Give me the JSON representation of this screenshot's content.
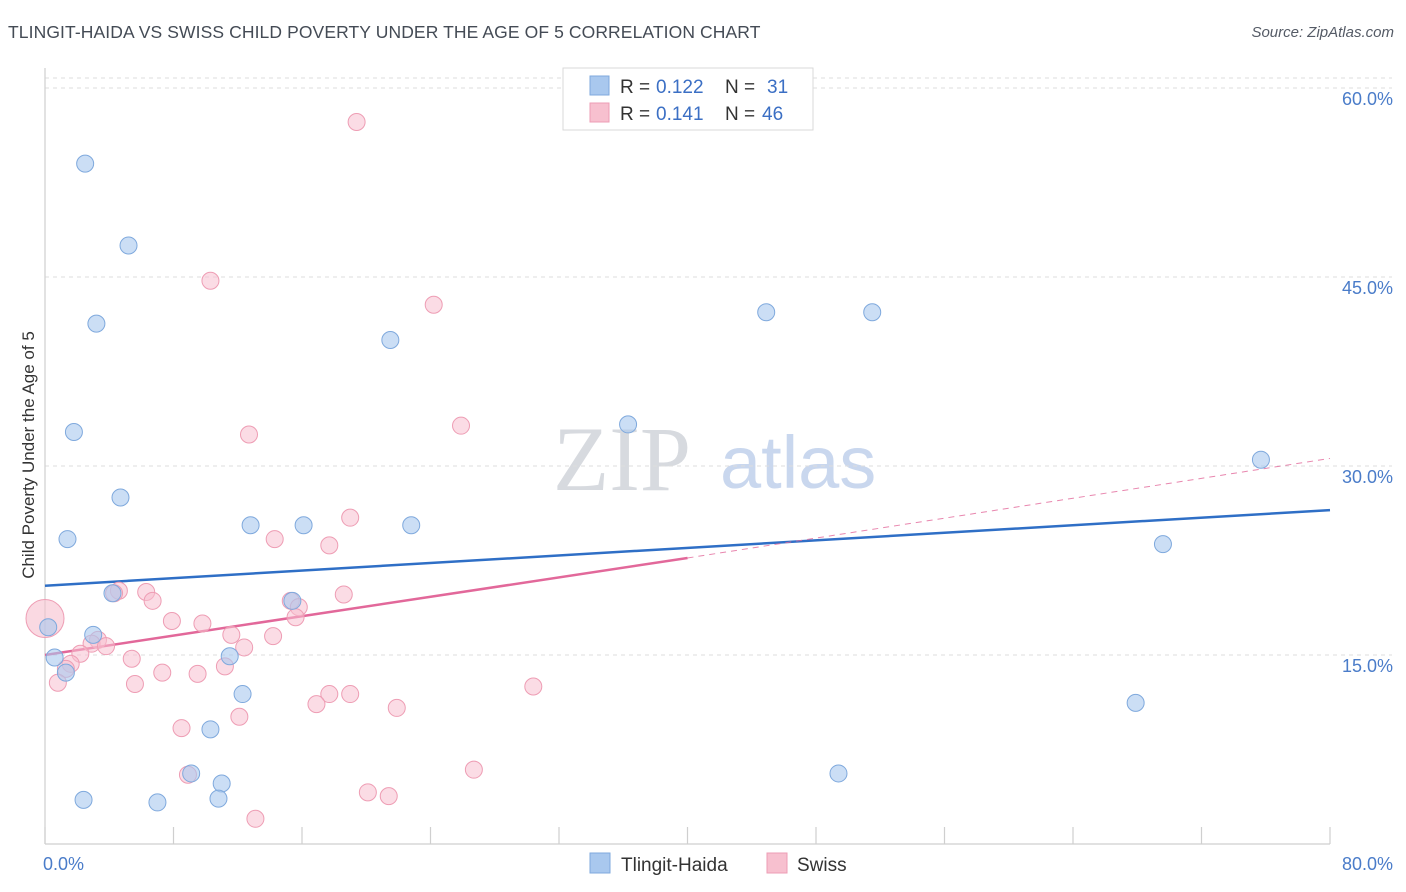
{
  "header": {
    "title": "TLINGIT-HAIDA VS SWISS CHILD POVERTY UNDER THE AGE OF 5 CORRELATION CHART",
    "source": "Source: ZipAtlas.com"
  },
  "watermark": {
    "zip": "ZIP",
    "atlas": "atlas"
  },
  "colors": {
    "blue_fill": "#a9c8ee",
    "blue_stroke": "#7fa9dd",
    "blue_line": "#2f6fc6",
    "pink_fill": "#f7c0cf",
    "pink_stroke": "#ee9db4",
    "pink_line": "#e2689a",
    "grid": "#dddddd",
    "tick_label": "#4a7cc9"
  },
  "legend": {
    "rows": [
      {
        "r_label": "R = ",
        "r_value": "0.122",
        "n_label": "N = ",
        "n_value": "31"
      },
      {
        "r_label": "R = ",
        "r_value": "0.141",
        "n_label": "N = ",
        "n_value": "46"
      }
    ]
  },
  "chart_data": {
    "type": "scatter",
    "title": "TLINGIT-HAIDA VS SWISS CHILD POVERTY UNDER THE AGE OF 5 CORRELATION CHART",
    "xlabel": "",
    "ylabel": "Child Poverty Under the Age of 5",
    "xlim": [
      0,
      80
    ],
    "ylim": [
      0,
      60
    ],
    "x_tick_labels": [
      "0.0%",
      "80.0%"
    ],
    "y_ticks": [
      15,
      30,
      45,
      60
    ],
    "y_tick_labels": [
      "15.0%",
      "30.0%",
      "45.0%",
      "60.0%"
    ],
    "grid": true,
    "legend_position": "top-center",
    "series": [
      {
        "name": "Tlingit-Haida",
        "color": "blue",
        "r": 0.122,
        "n": 31,
        "trend": {
          "x": [
            0,
            80
          ],
          "y": [
            20.5,
            26.5
          ]
        },
        "points": [
          [
            2.5,
            54.0
          ],
          [
            5.2,
            47.5
          ],
          [
            3.2,
            41.3
          ],
          [
            21.5,
            40.0
          ],
          [
            1.8,
            32.7
          ],
          [
            4.7,
            27.5
          ],
          [
            1.4,
            24.2
          ],
          [
            12.8,
            25.3
          ],
          [
            16.1,
            25.3
          ],
          [
            22.8,
            25.3
          ],
          [
            36.3,
            33.3
          ],
          [
            44.9,
            42.2
          ],
          [
            51.5,
            42.2
          ],
          [
            75.7,
            30.5
          ],
          [
            69.6,
            23.8
          ],
          [
            4.2,
            19.9
          ],
          [
            15.4,
            19.3
          ],
          [
            0.2,
            17.2
          ],
          [
            3.0,
            16.6
          ],
          [
            11.5,
            14.9
          ],
          [
            0.6,
            14.8
          ],
          [
            1.3,
            13.6
          ],
          [
            12.3,
            11.9
          ],
          [
            10.3,
            9.1
          ],
          [
            67.9,
            11.2
          ],
          [
            9.1,
            5.6
          ],
          [
            11.0,
            4.8
          ],
          [
            2.4,
            3.5
          ],
          [
            7.0,
            3.3
          ],
          [
            10.8,
            3.6
          ],
          [
            49.4,
            5.6
          ]
        ]
      },
      {
        "name": "Swiss",
        "color": "pink",
        "r": 0.141,
        "n": 46,
        "trend": {
          "x": [
            0,
            40
          ],
          "y": [
            15.0,
            22.7
          ]
        },
        "trend_dashed": {
          "x": [
            40,
            80
          ],
          "y": [
            22.7,
            30.6
          ]
        },
        "points": [
          [
            19.4,
            57.3
          ],
          [
            10.3,
            44.7
          ],
          [
            24.2,
            42.8
          ],
          [
            12.7,
            32.5
          ],
          [
            25.9,
            33.2
          ],
          [
            19.0,
            25.9
          ],
          [
            14.3,
            24.2
          ],
          [
            17.7,
            23.7
          ],
          [
            18.6,
            19.8
          ],
          [
            15.3,
            19.3
          ],
          [
            4.6,
            20.1
          ],
          [
            6.3,
            20.0
          ],
          [
            6.7,
            19.3
          ],
          [
            4.3,
            19.9
          ],
          [
            15.8,
            18.8
          ],
          [
            15.6,
            18.0
          ],
          [
            7.9,
            17.7
          ],
          [
            9.8,
            17.5
          ],
          [
            11.6,
            16.6
          ],
          [
            14.2,
            16.5
          ],
          [
            3.3,
            16.2
          ],
          [
            2.9,
            15.9
          ],
          [
            3.8,
            15.7
          ],
          [
            12.4,
            15.6
          ],
          [
            2.2,
            15.1
          ],
          [
            0.0,
            17.9
          ],
          [
            5.4,
            14.7
          ],
          [
            1.6,
            14.3
          ],
          [
            1.3,
            13.9
          ],
          [
            11.2,
            14.1
          ],
          [
            7.3,
            13.6
          ],
          [
            9.5,
            13.5
          ],
          [
            0.8,
            12.8
          ],
          [
            5.6,
            12.7
          ],
          [
            30.4,
            12.5
          ],
          [
            17.7,
            11.9
          ],
          [
            19.0,
            11.9
          ],
          [
            16.9,
            11.1
          ],
          [
            21.9,
            10.8
          ],
          [
            12.1,
            10.1
          ],
          [
            8.5,
            9.2
          ],
          [
            26.7,
            5.9
          ],
          [
            8.9,
            5.5
          ],
          [
            20.1,
            4.1
          ],
          [
            21.4,
            3.8
          ],
          [
            13.1,
            2.0
          ]
        ]
      }
    ]
  }
}
